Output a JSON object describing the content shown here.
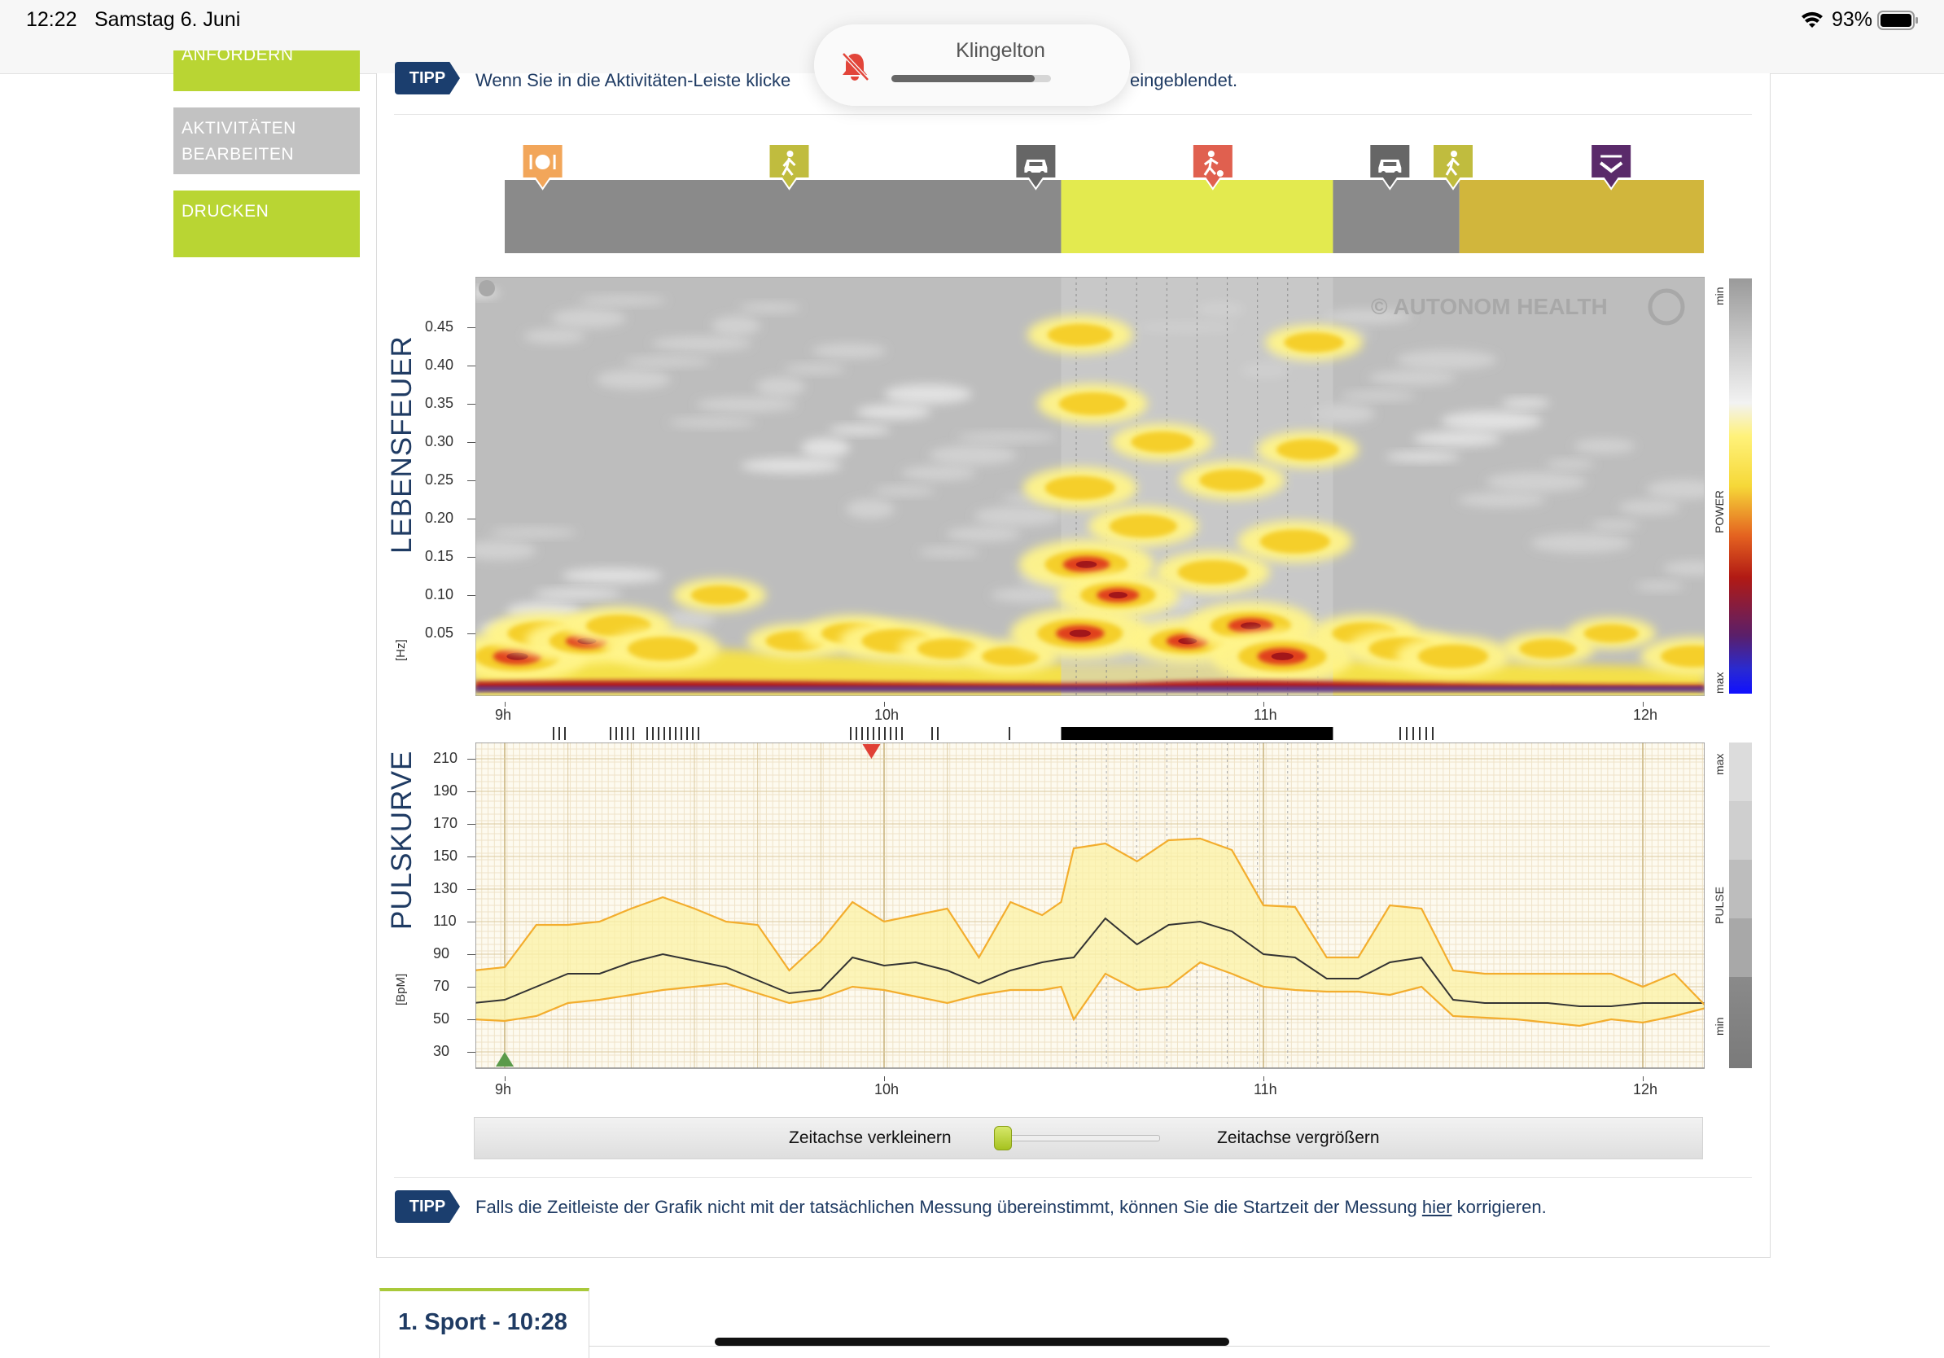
{
  "status": {
    "time": "12:22",
    "date": "Samstag 6. Juni",
    "battery": "93%"
  },
  "notification": {
    "title": "Klingelton",
    "volume_level": 0.9,
    "icon": "bell-slash-icon"
  },
  "sidebar": {
    "items": [
      {
        "label": "ANFORDERN"
      },
      {
        "label_line1": "AKTIVITÄTEN",
        "label_line2": "BEARBEITEN"
      },
      {
        "label": "DRUCKEN"
      }
    ],
    "colors": {
      "green": "#b9d533",
      "gray": "#c2c2c2"
    }
  },
  "tips": {
    "badge": "TIPP",
    "top_part1": "Wenn Sie in die Aktivitäten-Leiste klicke",
    "top_part2": "eingeblendet.",
    "bottom_before": "Falls die Zeitleiste der Grafik nicht mit der tatsächlichen Messung übereinstimmt, können Sie die Startzeit der Messung ",
    "bottom_link": "hier",
    "bottom_after": " korrigieren."
  },
  "activity_bar": {
    "segments": [
      {
        "start": "09:00",
        "end": "10:28",
        "color": "#8a8a8a"
      },
      {
        "start": "10:28",
        "end": "11:11",
        "color": "#e3ea4f"
      },
      {
        "start": "11:11",
        "end": "11:31",
        "color": "#8a8a8a"
      },
      {
        "start": "11:31",
        "end": "12:10",
        "color": "#d1b63c"
      }
    ],
    "markers": [
      {
        "icon": "meal-icon",
        "time": "09:06",
        "color": "#f2a65a"
      },
      {
        "icon": "walk-icon",
        "time": "09:45",
        "color": "#c0bc3e"
      },
      {
        "icon": "car-icon",
        "time": "10:24",
        "color": "#666666"
      },
      {
        "icon": "sport-icon",
        "time": "10:52",
        "color": "#e0604f"
      },
      {
        "icon": "car-icon",
        "time": "11:20",
        "color": "#666666"
      },
      {
        "icon": "walk-icon",
        "time": "11:30",
        "color": "#c0bc3e"
      },
      {
        "icon": "sleep-icon",
        "time": "11:55",
        "color": "#5a2a6a"
      }
    ]
  },
  "spectrogram": {
    "title": "LEBENSFEUER",
    "unit": "[Hz]",
    "y_ticks": [
      "0.45",
      "0.40",
      "0.35",
      "0.30",
      "0.25",
      "0.20",
      "0.15",
      "0.10",
      "0.05"
    ],
    "watermark": "© AUTONOM HEALTH",
    "legend_label": "POWER",
    "legend_min": "min",
    "legend_max": "max"
  },
  "time_ticks": [
    "9h",
    "10h",
    "11h",
    "12h"
  ],
  "pulse_chart": {
    "title": "PULSKURVE",
    "unit": "[BpM]",
    "y_ticks": [
      "210",
      "190",
      "170",
      "150",
      "130",
      "110",
      "90",
      "70",
      "50",
      "30"
    ],
    "legend_label": "PULSE",
    "legend_min": "min",
    "legend_max": "max"
  },
  "chart_data": {
    "type": "line",
    "title": "",
    "xlabel": "",
    "ylabel": "[BpM]",
    "ylim": [
      20,
      220
    ],
    "xlim": [
      "08:55",
      "12:10"
    ],
    "x_ticks": [
      "9h",
      "10h",
      "11h",
      "12h"
    ],
    "x": [
      "08:55",
      "09:00",
      "09:05",
      "09:10",
      "09:15",
      "09:20",
      "09:25",
      "09:30",
      "09:35",
      "09:40",
      "09:45",
      "09:50",
      "09:55",
      "10:00",
      "10:05",
      "10:10",
      "10:15",
      "10:20",
      "10:25",
      "10:28",
      "10:30",
      "10:35",
      "10:40",
      "10:45",
      "10:50",
      "10:55",
      "11:00",
      "11:05",
      "11:10",
      "11:15",
      "11:20",
      "11:25",
      "11:30",
      "11:35",
      "11:40",
      "11:45",
      "11:50",
      "11:55",
      "12:00",
      "12:05",
      "12:10"
    ],
    "series": [
      {
        "color": "#333333",
        "values": [
          60,
          62,
          70,
          78,
          78,
          85,
          90,
          86,
          82,
          74,
          66,
          68,
          88,
          83,
          85,
          80,
          72,
          80,
          85,
          87,
          88,
          112,
          96,
          108,
          110,
          104,
          90,
          88,
          75,
          75,
          85,
          88,
          62,
          60,
          60,
          60,
          58,
          58,
          60,
          60,
          60
        ]
      },
      {
        "color": "#f3ad2d",
        "values": [
          80,
          82,
          108,
          108,
          110,
          118,
          125,
          118,
          110,
          108,
          80,
          98,
          122,
          110,
          114,
          118,
          88,
          122,
          114,
          122,
          155,
          158,
          147,
          160,
          161,
          154,
          120,
          119,
          88,
          88,
          120,
          118,
          80,
          78,
          78,
          78,
          78,
          78,
          70,
          78,
          58
        ]
      },
      {
        "color": "#f3ad2d",
        "values": [
          50,
          49,
          52,
          60,
          62,
          65,
          68,
          70,
          72,
          66,
          60,
          63,
          70,
          68,
          64,
          60,
          65,
          68,
          68,
          70,
          50,
          78,
          68,
          70,
          85,
          78,
          70,
          68,
          67,
          67,
          65,
          70,
          52,
          51,
          50,
          48,
          46,
          50,
          48,
          52,
          57
        ]
      }
    ],
    "markers": [
      {
        "name": "min",
        "time": "09:00",
        "value": 25,
        "color": "#5a9a4a"
      },
      {
        "name": "max",
        "time": "09:58",
        "value": 210,
        "color": "#e04035"
      }
    ]
  },
  "spectro_data": {
    "band_intervals": [
      [
        "10:28",
        "11:11"
      ]
    ],
    "hot_spots": [
      {
        "t": "09:02",
        "f": 0.02,
        "i": 0.9
      },
      {
        "t": "09:06",
        "f": 0.05,
        "i": 0.6
      },
      {
        "t": "09:13",
        "f": 0.04,
        "i": 0.7
      },
      {
        "t": "09:18",
        "f": 0.06,
        "i": 0.5
      },
      {
        "t": "09:25",
        "f": 0.03,
        "i": 0.6
      },
      {
        "t": "09:34",
        "f": 0.1,
        "i": 0.35
      },
      {
        "t": "09:46",
        "f": 0.04,
        "i": 0.4
      },
      {
        "t": "09:55",
        "f": 0.05,
        "i": 0.45
      },
      {
        "t": "10:02",
        "f": 0.04,
        "i": 0.6
      },
      {
        "t": "10:10",
        "f": 0.03,
        "i": 0.4
      },
      {
        "t": "10:20",
        "f": 0.02,
        "i": 0.35
      },
      {
        "t": "10:31",
        "f": 0.05,
        "i": 0.9
      },
      {
        "t": "10:32",
        "f": 0.14,
        "i": 0.85
      },
      {
        "t": "10:31",
        "f": 0.24,
        "i": 0.6
      },
      {
        "t": "10:33",
        "f": 0.35,
        "i": 0.55
      },
      {
        "t": "10:31",
        "f": 0.44,
        "i": 0.5
      },
      {
        "t": "10:37",
        "f": 0.1,
        "i": 0.7
      },
      {
        "t": "10:41",
        "f": 0.19,
        "i": 0.55
      },
      {
        "t": "10:44",
        "f": 0.3,
        "i": 0.45
      },
      {
        "t": "10:48",
        "f": 0.04,
        "i": 0.7
      },
      {
        "t": "10:52",
        "f": 0.13,
        "i": 0.6
      },
      {
        "t": "10:55",
        "f": 0.25,
        "i": 0.5
      },
      {
        "t": "10:58",
        "f": 0.06,
        "i": 0.8
      },
      {
        "t": "11:03",
        "f": 0.02,
        "i": 0.95
      },
      {
        "t": "11:05",
        "f": 0.17,
        "i": 0.6
      },
      {
        "t": "11:07",
        "f": 0.29,
        "i": 0.45
      },
      {
        "t": "11:08",
        "f": 0.43,
        "i": 0.4
      },
      {
        "t": "11:16",
        "f": 0.05,
        "i": 0.5
      },
      {
        "t": "11:22",
        "f": 0.03,
        "i": 0.55
      },
      {
        "t": "11:30",
        "f": 0.02,
        "i": 0.6
      },
      {
        "t": "11:45",
        "f": 0.03,
        "i": 0.35
      },
      {
        "t": "11:55",
        "f": 0.05,
        "i": 0.3
      },
      {
        "t": "12:08",
        "f": 0.02,
        "i": 0.5
      }
    ]
  },
  "zoom": {
    "left_label": "Zeitachse verkleinern",
    "right_label": "Zeitachse vergrößern"
  },
  "tab": {
    "label": "1. Sport - 10:28"
  }
}
